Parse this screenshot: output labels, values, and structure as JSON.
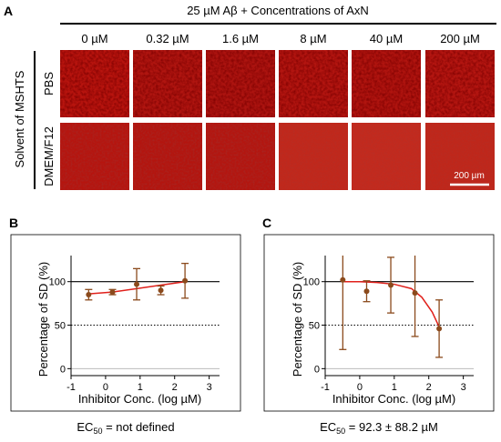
{
  "panel_a": {
    "label": "A",
    "title": "25 µM Aβ + Concentrations of AxN",
    "columns": [
      "0 µM",
      "0.32 µM",
      "1.6 µM",
      "8 µM",
      "40 µM",
      "200 µM"
    ],
    "group_label": "Solvent of MSHTS",
    "rows": [
      "PBS",
      "DMEM/F12"
    ],
    "scale_bar": "200 µm"
  },
  "chart_data": [
    {
      "type": "scatter",
      "panel": "B",
      "x_label": "Inhibitor Conc. (log µM)",
      "y_label": "Percentage of SD (%)",
      "x": [
        -0.49,
        0.2,
        0.9,
        1.6,
        2.3
      ],
      "series": [
        {
          "name": "SD",
          "color": "#8b4a1c",
          "values": [
            85,
            88,
            97,
            90,
            101
          ],
          "errors": [
            6,
            3,
            18,
            5,
            20
          ]
        }
      ],
      "fit": {
        "color": "#e0201b",
        "x": [
          -0.49,
          0.2,
          0.9,
          1.6,
          2.3
        ],
        "values": [
          86,
          88,
          92,
          96,
          100
        ]
      },
      "hlines": [
        {
          "value": 100,
          "style": "solid"
        },
        {
          "value": 50,
          "style": "dotted"
        },
        {
          "value": 0,
          "style": "grey"
        }
      ],
      "xlim": [
        -1,
        3.3
      ],
      "xticks": [
        -1,
        0,
        1,
        2,
        3
      ],
      "ylim": [
        -8,
        130
      ],
      "yticks": [
        0,
        50,
        100
      ],
      "annotation": {
        "main": "EC",
        "sub": "50",
        "rest": " = not defined"
      }
    },
    {
      "type": "scatter",
      "panel": "C",
      "x_label": "Inhibitor Conc. (log µM)",
      "y_label": "Percentage of SD (%)",
      "x": [
        -0.49,
        0.2,
        0.9,
        1.6,
        2.3
      ],
      "series": [
        {
          "name": "SD",
          "color": "#8b4a1c",
          "values": [
            102,
            89,
            96,
            87,
            46
          ],
          "errors": [
            80,
            12,
            32,
            50,
            33
          ]
        }
      ],
      "fit": {
        "color": "#e0201b",
        "x": [
          -0.49,
          0,
          0.5,
          1,
          1.5,
          1.8,
          2.1,
          2.3
        ],
        "values": [
          100,
          100,
          99,
          97,
          92,
          82,
          65,
          48
        ]
      },
      "hlines": [
        {
          "value": 100,
          "style": "solid"
        },
        {
          "value": 50,
          "style": "dotted"
        },
        {
          "value": 0,
          "style": "grey"
        }
      ],
      "xlim": [
        -1,
        3.3
      ],
      "xticks": [
        -1,
        0,
        1,
        2,
        3
      ],
      "ylim": [
        -8,
        130
      ],
      "yticks": [
        0,
        50,
        100
      ],
      "annotation": {
        "main": "EC",
        "sub": "50",
        "rest": " = 92.3 ± 88.2 µM"
      }
    }
  ]
}
